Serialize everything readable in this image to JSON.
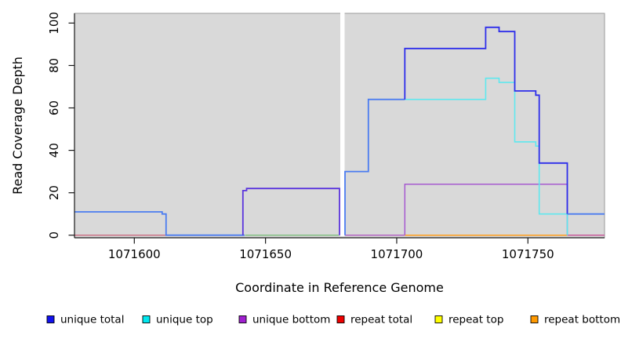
{
  "chart_data": {
    "type": "line",
    "subtype": "step-coverage",
    "title": "",
    "xlabel": "Coordinate in Reference Genome",
    "ylabel": "Read Coverage Depth",
    "xlim": [
      1071577.2,
      1071779.2
    ],
    "ylim": [
      0,
      100
    ],
    "xticks": [
      1071600,
      1071650,
      1071700,
      1071750
    ],
    "yticks": [
      0,
      20,
      40,
      60,
      80,
      100
    ],
    "grid": "off",
    "panel_bg": "#d9d9d9",
    "panel_border": "#9a9a9a",
    "axis_color": "#1a1a1a",
    "white_gap_x": [
      1071678.5,
      1071680.15
    ],
    "legend_position": "bottom",
    "legend": [
      {
        "label": "unique total",
        "color": "#1111ee"
      },
      {
        "label": "unique top",
        "color": "#00e8f0"
      },
      {
        "label": "unique bottom",
        "color": "#a020d0"
      },
      {
        "label": "repeat total",
        "color": "#ee0000"
      },
      {
        "label": "repeat top",
        "color": "#ffff00"
      },
      {
        "label": "repeat bottom",
        "color": "#ff9900"
      }
    ],
    "series": [
      {
        "name": "repeat-total-baseline-left",
        "color": "#c96a80",
        "width": 1.4,
        "points": [
          [
            1071577.2,
            0
          ],
          [
            1071612.1,
            0
          ]
        ]
      },
      {
        "name": "baseline-green-mid",
        "color": "#7cbd7c",
        "width": 1.4,
        "points": [
          [
            1071642.2,
            0
          ],
          [
            1071677.9,
            0
          ]
        ]
      },
      {
        "name": "baseline-magenta",
        "color": "#b05cc0",
        "width": 1.4,
        "points": [
          [
            1071680.3,
            0
          ],
          [
            1071703.1,
            0
          ]
        ]
      },
      {
        "name": "repeat-bottom-baseline",
        "color": "#ff9d1c",
        "width": 1.5,
        "points": [
          [
            1071703.1,
            0
          ],
          [
            1071765.0,
            0
          ]
        ]
      },
      {
        "name": "baseline-pink-right",
        "color": "#c75095",
        "width": 1.4,
        "points": [
          [
            1071765.0,
            0
          ],
          [
            1071779.2,
            0
          ]
        ]
      },
      {
        "name": "unique-bottom",
        "color": "#a65ad0",
        "width": 1.5,
        "points": [
          [
            1071703.1,
            0
          ],
          [
            1071703.1,
            24
          ],
          [
            1071765,
            24
          ],
          [
            1071765,
            0
          ]
        ]
      },
      {
        "name": "unique-top",
        "color": "#5fe8ee",
        "width": 1.6,
        "points": [
          [
            1071703.1,
            64
          ],
          [
            1071733.9,
            64
          ],
          [
            1071733.9,
            74
          ],
          [
            1071739,
            74
          ],
          [
            1071739,
            72
          ],
          [
            1071745,
            72
          ],
          [
            1071745,
            44
          ],
          [
            1071753,
            44
          ],
          [
            1071753,
            42
          ],
          [
            1071754.3,
            42
          ],
          [
            1071754.3,
            10
          ],
          [
            1071765,
            10
          ],
          [
            1071765,
            0
          ]
        ]
      },
      {
        "name": "unique-total-left",
        "color": "#4b7cf0",
        "width": 1.8,
        "points": [
          [
            1071577.2,
            11
          ],
          [
            1071610.6,
            11
          ],
          [
            1071610.6,
            10
          ],
          [
            1071612.1,
            10
          ],
          [
            1071612.1,
            0
          ],
          [
            1071642,
            0
          ]
        ]
      },
      {
        "name": "unique-total-mid",
        "color": "#5b35dd",
        "width": 1.8,
        "points": [
          [
            1071641.4,
            0
          ],
          [
            1071641.4,
            21
          ],
          [
            1071642.8,
            21
          ],
          [
            1071642.8,
            22
          ],
          [
            1071678.2,
            22
          ],
          [
            1071678.2,
            0
          ]
        ]
      },
      {
        "name": "unique-total-rise",
        "color": "#4b7cf0",
        "width": 1.8,
        "points": [
          [
            1071680.3,
            0
          ],
          [
            1071680.3,
            30
          ],
          [
            1071689.2,
            30
          ],
          [
            1071689.2,
            64
          ],
          [
            1071703.1,
            64
          ]
        ]
      },
      {
        "name": "unique-total-peak",
        "color": "#2e2eea",
        "width": 1.8,
        "points": [
          [
            1071703.1,
            64
          ],
          [
            1071703.1,
            88
          ],
          [
            1071733.9,
            88
          ],
          [
            1071733.9,
            98
          ],
          [
            1071739,
            98
          ],
          [
            1071739,
            96
          ],
          [
            1071745,
            96
          ],
          [
            1071745,
            68
          ],
          [
            1071753,
            68
          ],
          [
            1071753,
            66
          ],
          [
            1071754.3,
            66
          ],
          [
            1071754.3,
            34
          ],
          [
            1071765,
            34
          ],
          [
            1071765,
            10
          ]
        ]
      },
      {
        "name": "unique-total-tail",
        "color": "#4b7cf0",
        "width": 1.8,
        "points": [
          [
            1071765,
            10
          ],
          [
            1071779.2,
            10
          ]
        ]
      }
    ]
  }
}
